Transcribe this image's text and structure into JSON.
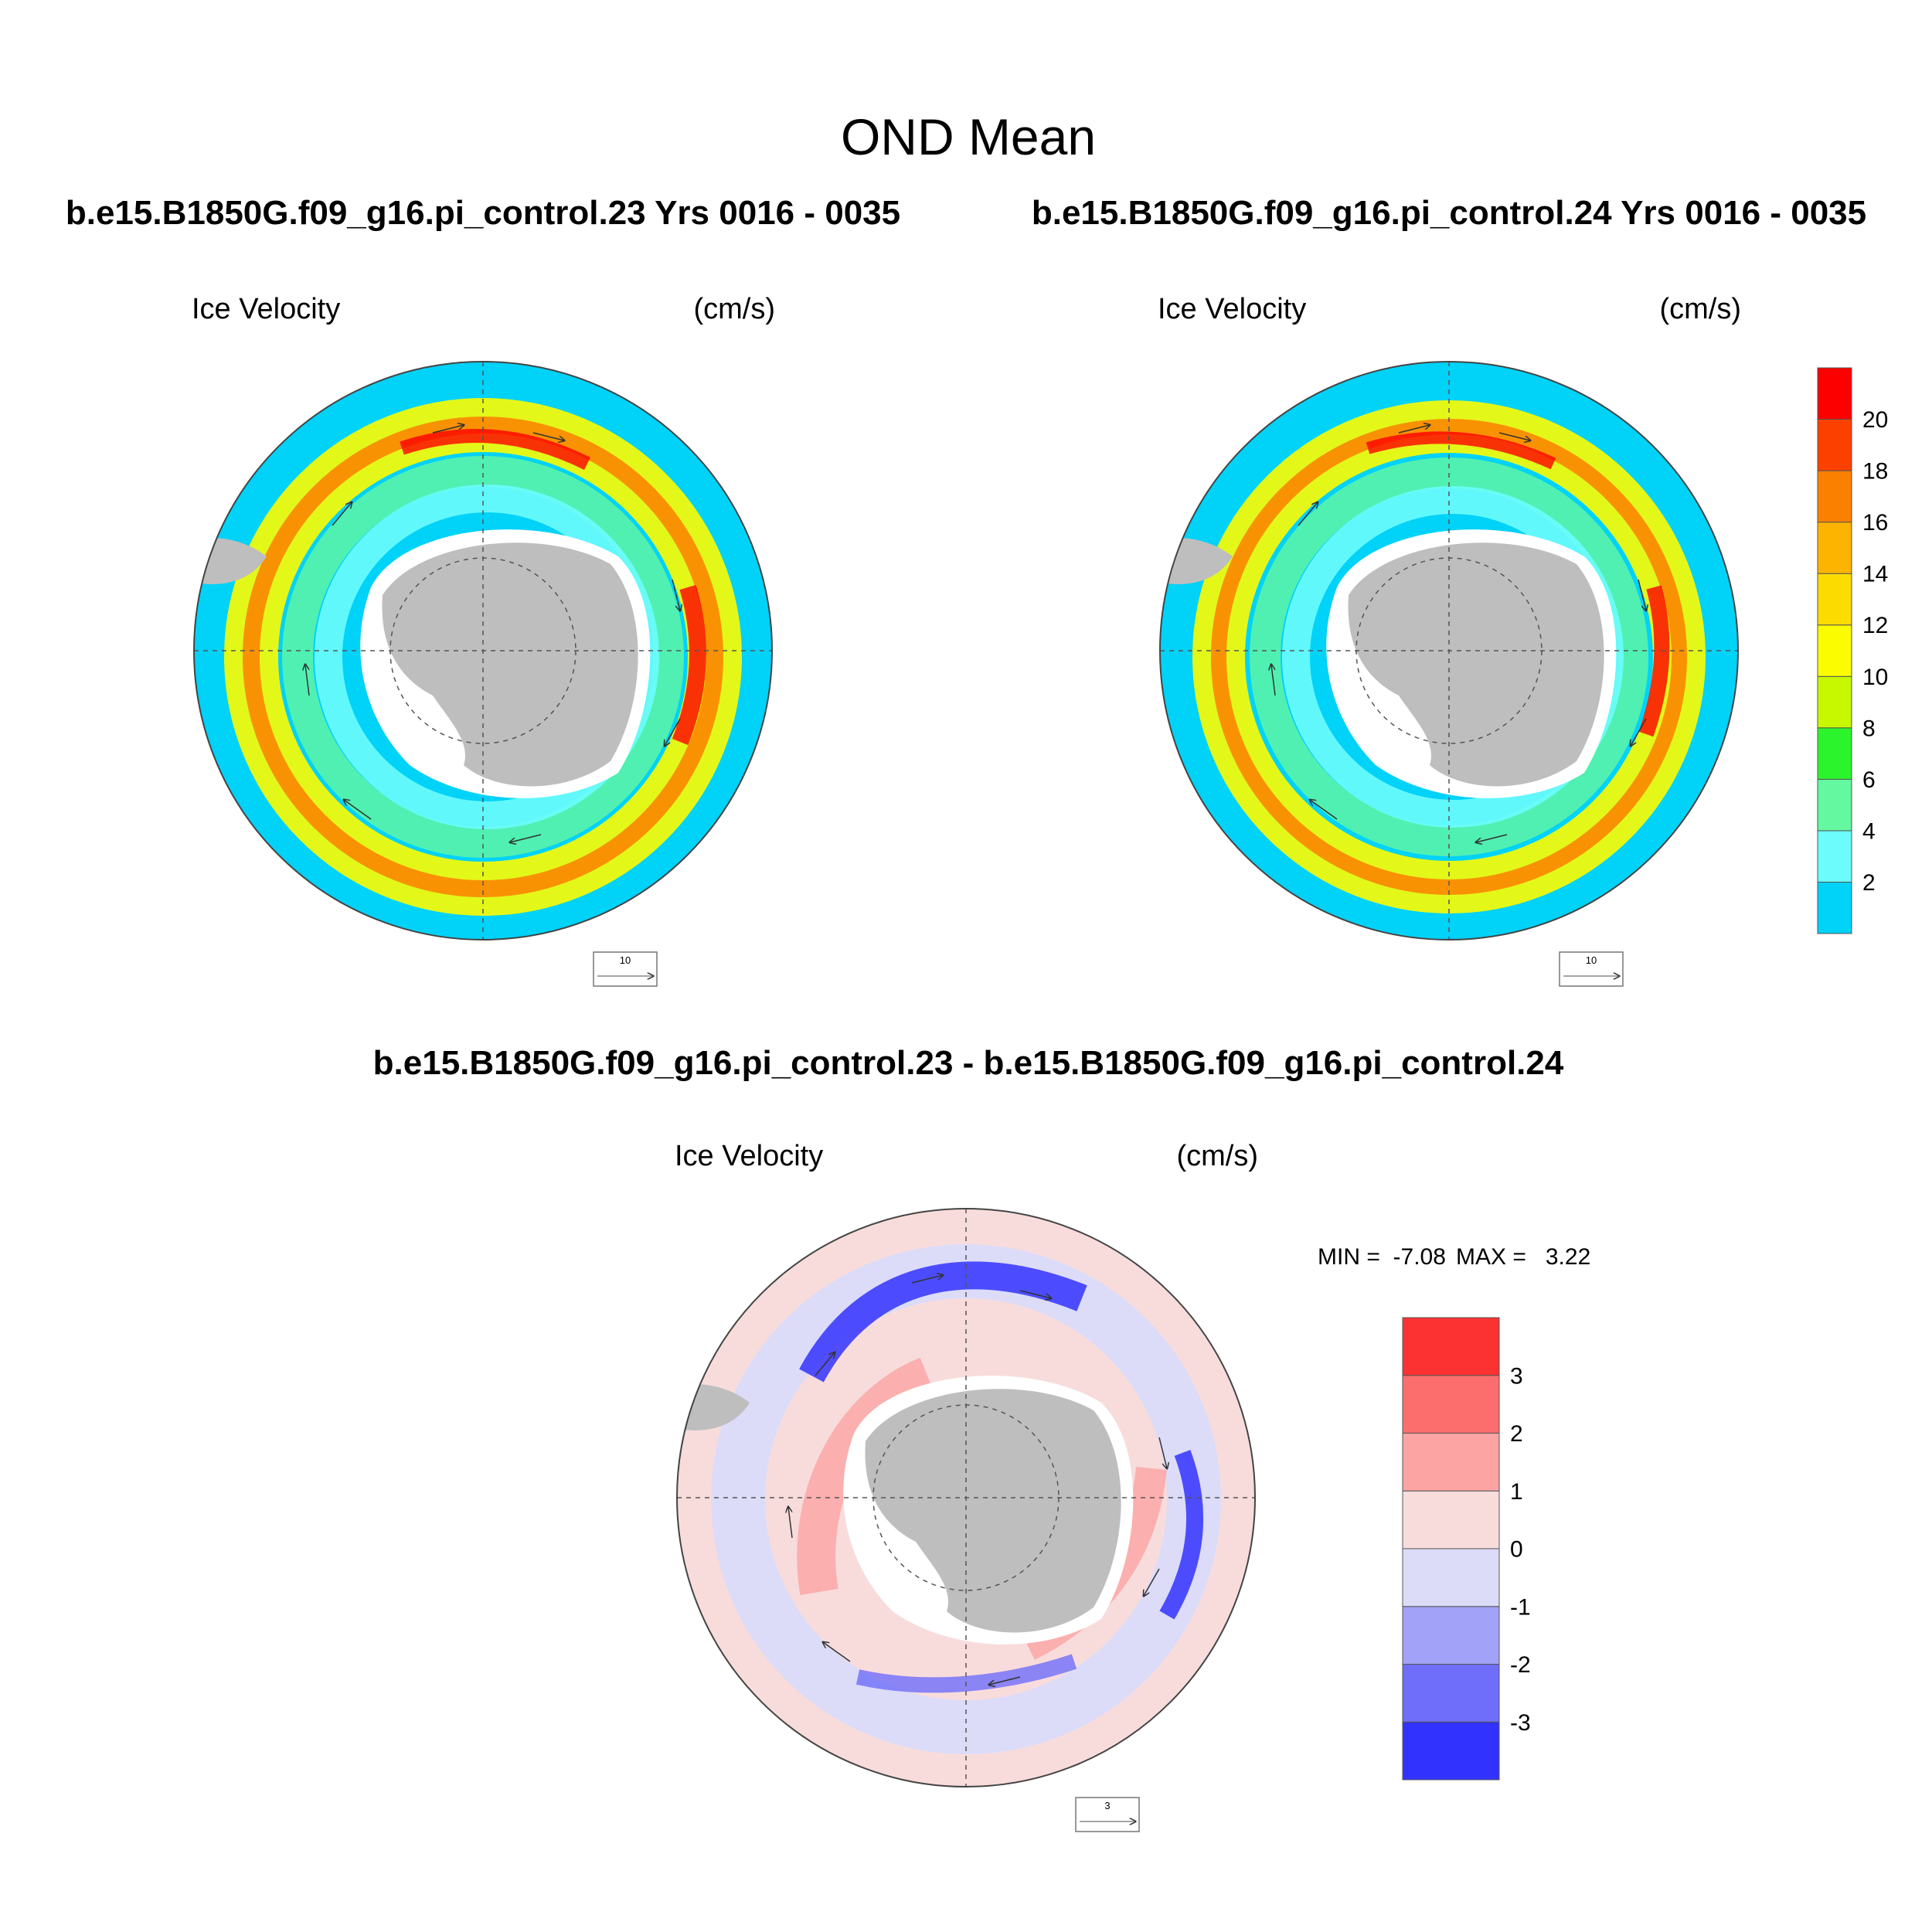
{
  "figure": {
    "title": "OND Mean",
    "run_a_header": "b.e15.B1850G.f09_g16.pi_control.23  Yrs 0016 - 0035",
    "run_b_header": "b.e15.B1850G.f09_g16.pi_control.24  Yrs 0016 - 0035",
    "diff_header": "b.e15.B1850G.f09_g16.pi_control.23 - b.e15.B1850G.f09_g16.pi_control.24"
  },
  "panels": {
    "run_a": {
      "variable": "Ice Velocity",
      "units": "(cm/s)",
      "ref_vector": "10"
    },
    "run_b": {
      "variable": "Ice Velocity",
      "units": "(cm/s)",
      "ref_vector": "10"
    },
    "diff": {
      "variable": "Ice Velocity",
      "units": "(cm/s)",
      "ref_vector": "3",
      "min_label": "MIN =  -7.08",
      "max_label": "MAX =   3.22",
      "min": -7.08,
      "max": 3.22
    }
  },
  "colorbars": {
    "velocity": {
      "labels": [
        "2",
        "4",
        "6",
        "8",
        "10",
        "12",
        "14",
        "16",
        "18",
        "20"
      ],
      "colors": [
        "#00d2f8",
        "#6cfcfc",
        "#64f8a0",
        "#2cf42c",
        "#c8f800",
        "#fcfc00",
        "#fcdc00",
        "#fcb400",
        "#fc8000",
        "#fc4000",
        "#fc0000"
      ]
    },
    "difference": {
      "labels": [
        "-3",
        "-2",
        "-1",
        "0",
        "1",
        "2",
        "3"
      ],
      "colors": [
        "#3232ff",
        "#6e6efa",
        "#a2a2f8",
        "#dcdcf8",
        "#f8dcdc",
        "#fca4a4",
        "#fc6e6e",
        "#fc3232"
      ]
    }
  },
  "map_colors": {
    "ocean": "#00d2f8",
    "land": "#bebebe",
    "shelf": "#ffffff"
  }
}
